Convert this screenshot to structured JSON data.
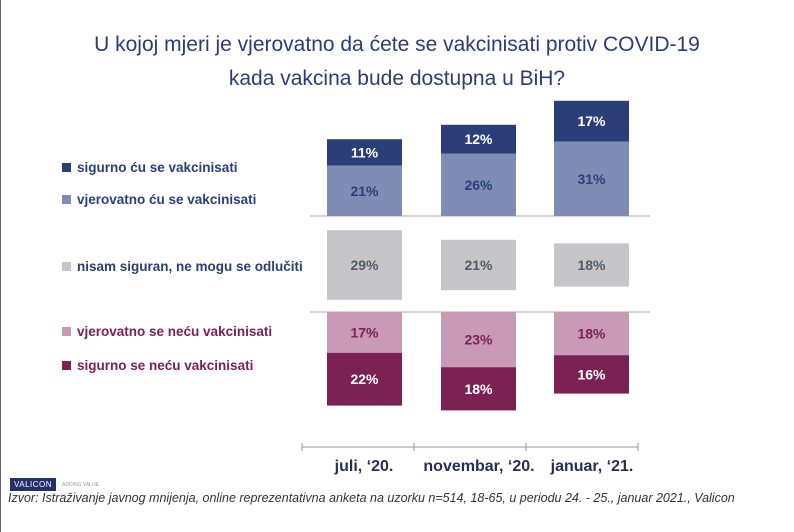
{
  "chart_data": {
    "type": "bar",
    "stacked": true,
    "title": "U kojoj mjeri je vjerovatno da ćete se vakcinisati protiv COVID-19 kada vakcina bude dostupna u BiH?",
    "title_lines": [
      "U kojoj mjeri je vjerovatno da ćete se vakcinisati protiv COVID-19",
      "kada vakcina bude dostupna u BiH?"
    ],
    "categories": [
      "juli, ‘20.",
      "novembar, ‘20.",
      "januar, ‘21."
    ],
    "unit": "%",
    "series": [
      {
        "name": "sigurno ću se vakcinisati",
        "group": "positive",
        "color": "#2b3e78",
        "label_color": "#ffffff",
        "values": [
          11,
          12,
          17
        ]
      },
      {
        "name": "vjerovatno ću se vakcinisati",
        "group": "positive",
        "color": "#7f8db5",
        "label_color": "#2b3e78",
        "values": [
          21,
          26,
          31
        ]
      },
      {
        "name": "nisam siguran, ne mogu se odlučiti",
        "group": "neutral",
        "color": "#c6c6c8",
        "label_color": "#555a66",
        "values": [
          29,
          21,
          18
        ]
      },
      {
        "name": "vjerovatno se neću vakcinisati",
        "group": "negative",
        "color": "#c99ab6",
        "label_color": "#7a2155",
        "values": [
          17,
          23,
          18
        ]
      },
      {
        "name": "sigurno se neću vakcinisati",
        "group": "negative",
        "color": "#7b2153",
        "label_color": "#ffffff",
        "values": [
          22,
          18,
          16
        ]
      }
    ],
    "legend_placement": "left",
    "grid": false
  },
  "footer": {
    "logo_text": "VALICON",
    "logo_tagline": "ADDING VALUE",
    "source": "Izvor: Istraživanje javnog mnijenja, online reprezentativna anketa na uzorku n=514, 18-65, u periodu 24. - 25., januar 2021., Valicon"
  }
}
